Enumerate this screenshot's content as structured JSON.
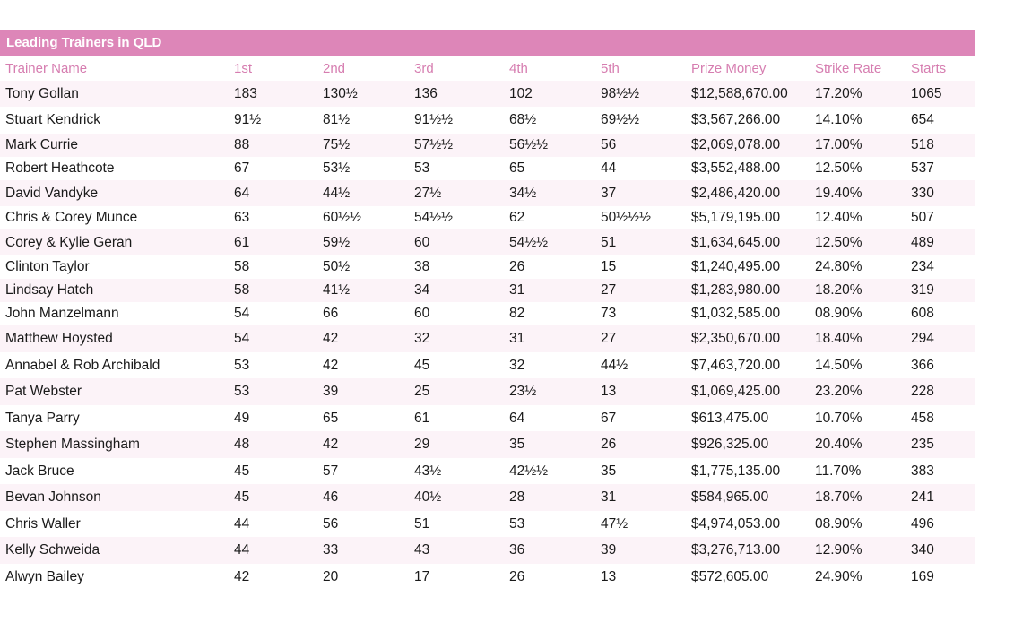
{
  "table": {
    "title": "Leading Trainers in QLD",
    "headers": [
      "Trainer Name",
      "1st",
      "2nd",
      "3rd",
      "4th",
      "5th",
      "Prize Money",
      "Strike Rate",
      "Starts"
    ],
    "rows": [
      [
        "Tony Gollan",
        "183",
        "130½",
        "136",
        "102",
        "98½½",
        "$12,588,670.00",
        "17.20%",
        "1065"
      ],
      [
        "Stuart Kendrick",
        "91½",
        "81½",
        "91½½",
        "68½",
        "69½½",
        "$3,567,266.00",
        "14.10%",
        "654"
      ],
      [
        "Mark Currie",
        "88",
        "75½",
        "57½½",
        "56½½",
        "56",
        "$2,069,078.00",
        "17.00%",
        "518"
      ],
      [
        "Robert Heathcote",
        "67",
        "53½",
        "53",
        "65",
        "44",
        "$3,552,488.00",
        "12.50%",
        "537"
      ],
      [
        "David Vandyke",
        "64",
        "44½",
        "27½",
        "34½",
        "37",
        "$2,486,420.00",
        "19.40%",
        "330"
      ],
      [
        "Chris & Corey Munce",
        "63",
        "60½½",
        "54½½",
        "62",
        "50½½½",
        "$5,179,195.00",
        "12.40%",
        "507"
      ],
      [
        "Corey & Kylie Geran",
        "61",
        "59½",
        "60",
        "54½½",
        "51",
        "$1,634,645.00",
        "12.50%",
        "489"
      ],
      [
        "Clinton Taylor",
        "58",
        "50½",
        "38",
        "26",
        "15",
        "$1,240,495.00",
        "24.80%",
        "234"
      ],
      [
        "Lindsay Hatch",
        "58",
        "41½",
        "34",
        "31",
        "27",
        "$1,283,980.00",
        "18.20%",
        "319"
      ],
      [
        "John Manzelmann",
        "54",
        "66",
        "60",
        "82",
        "73",
        "$1,032,585.00",
        "08.90%",
        "608"
      ],
      [
        "Matthew Hoysted",
        "54",
        "42",
        "32",
        "31",
        "27",
        "$2,350,670.00",
        "18.40%",
        "294"
      ],
      [
        "Annabel & Rob Archibald",
        "53",
        "42",
        "45",
        "32",
        "44½",
        "$7,463,720.00",
        "14.50%",
        "366"
      ],
      [
        "Pat Webster",
        "53",
        "39",
        "25",
        "23½",
        "13",
        "$1,069,425.00",
        "23.20%",
        "228"
      ],
      [
        "Tanya Parry",
        "49",
        "65",
        "61",
        "64",
        "67",
        "$613,475.00",
        "10.70%",
        "458"
      ],
      [
        "Stephen Massingham",
        "48",
        "42",
        "29",
        "35",
        "26",
        "$926,325.00",
        "20.40%",
        "235"
      ],
      [
        "Jack Bruce",
        "45",
        "57",
        "43½",
        "42½½",
        "35",
        "$1,775,135.00",
        "11.70%",
        "383"
      ],
      [
        "Bevan Johnson",
        "45",
        "46",
        "40½",
        "28",
        "31",
        "$584,965.00",
        "18.70%",
        "241"
      ],
      [
        "Chris Waller",
        "44",
        "56",
        "51",
        "53",
        "47½",
        "$4,974,053.00",
        "08.90%",
        "496"
      ],
      [
        "Kelly Schweida",
        "44",
        "33",
        "43",
        "36",
        "39",
        "$3,276,713.00",
        "12.90%",
        "340"
      ],
      [
        "Alwyn Bailey",
        "42",
        "20",
        "17",
        "26",
        "13",
        "$572,605.00",
        "24.90%",
        "169"
      ]
    ]
  }
}
